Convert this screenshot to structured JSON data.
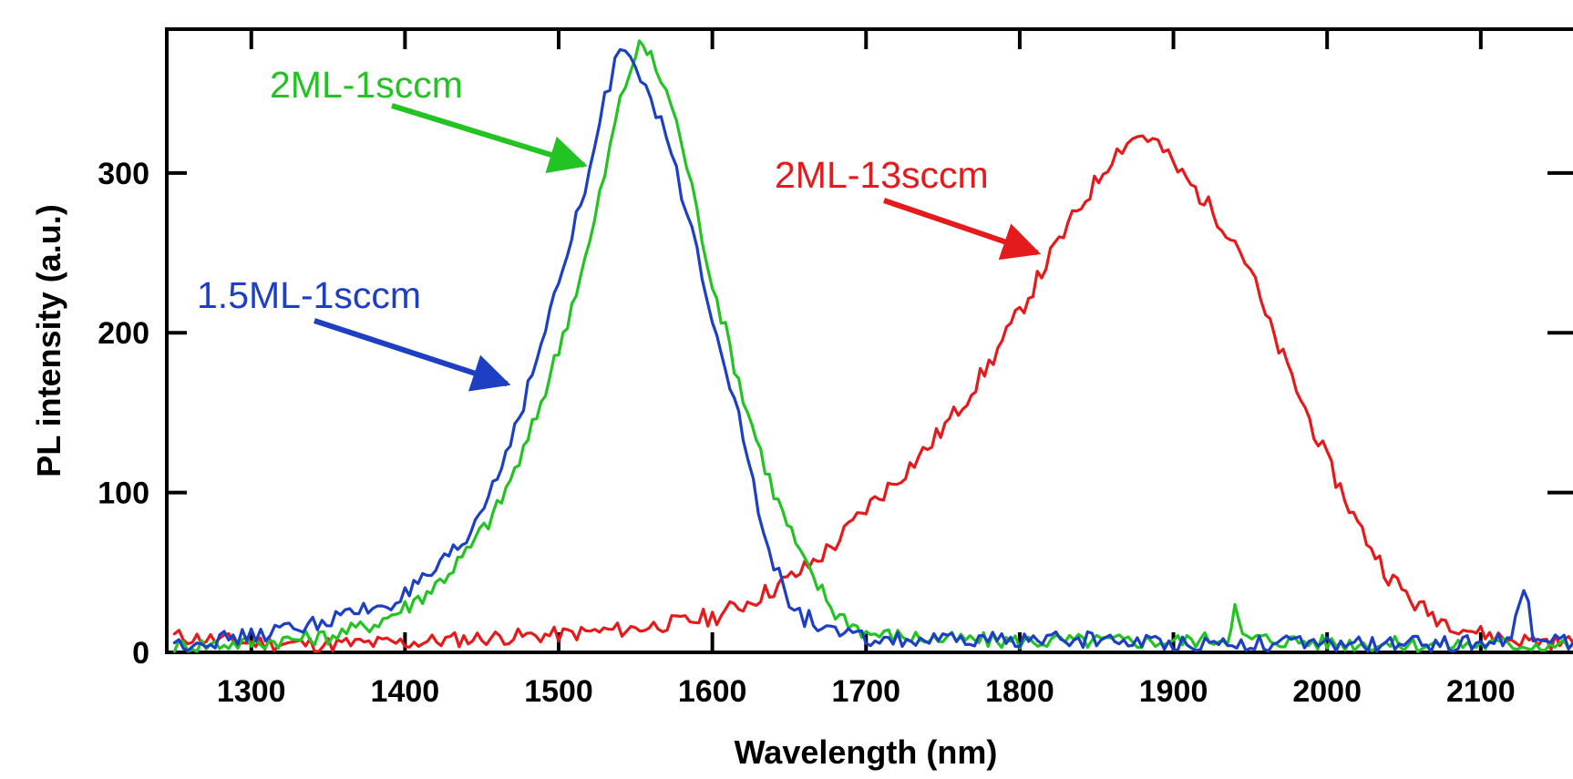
{
  "chart_data": {
    "type": "line",
    "title": "",
    "xlabel": "Wavelength (nm)",
    "ylabel": "PL intensity (a.u.)",
    "xlim": [
      1245,
      2160
    ],
    "ylim": [
      0,
      390
    ],
    "xticks": [
      1300,
      1400,
      1500,
      1600,
      1700,
      1800,
      1900,
      2000,
      2100
    ],
    "xtick_labels": [
      "1300",
      "1400",
      "1500",
      "1600",
      "1700",
      "1800",
      "1900",
      "2000",
      "2100"
    ],
    "yticks": [
      0,
      100,
      200,
      300
    ],
    "ytick_labels": [
      "0",
      "100",
      "200",
      "300"
    ],
    "grid": false,
    "legend": "none",
    "series": [
      {
        "name": "2ML-13sccm",
        "color": "#e41a1c",
        "points": [
          [
            1250,
            10
          ],
          [
            1300,
            6
          ],
          [
            1350,
            5
          ],
          [
            1400,
            6
          ],
          [
            1450,
            9
          ],
          [
            1500,
            11
          ],
          [
            1550,
            15
          ],
          [
            1600,
            22
          ],
          [
            1620,
            30
          ],
          [
            1640,
            40
          ],
          [
            1660,
            52
          ],
          [
            1680,
            68
          ],
          [
            1700,
            90
          ],
          [
            1720,
            108
          ],
          [
            1740,
            128
          ],
          [
            1760,
            152
          ],
          [
            1780,
            180
          ],
          [
            1800,
            213
          ],
          [
            1820,
            248
          ],
          [
            1840,
            280
          ],
          [
            1860,
            310
          ],
          [
            1870,
            320
          ],
          [
            1880,
            324
          ],
          [
            1890,
            318
          ],
          [
            1900,
            305
          ],
          [
            1920,
            283
          ],
          [
            1940,
            258
          ],
          [
            1950,
            240
          ],
          [
            1960,
            210
          ],
          [
            1980,
            165
          ],
          [
            2000,
            120
          ],
          [
            2020,
            80
          ],
          [
            2040,
            48
          ],
          [
            2060,
            28
          ],
          [
            2080,
            18
          ],
          [
            2100,
            12
          ],
          [
            2120,
            8
          ],
          [
            2140,
            7
          ],
          [
            2160,
            6
          ]
        ]
      },
      {
        "name": "2ML-1sccm",
        "color": "#22c322",
        "points": [
          [
            1250,
            4
          ],
          [
            1300,
            6
          ],
          [
            1350,
            10
          ],
          [
            1380,
            18
          ],
          [
            1400,
            28
          ],
          [
            1420,
            42
          ],
          [
            1440,
            62
          ],
          [
            1460,
            90
          ],
          [
            1480,
            132
          ],
          [
            1500,
            190
          ],
          [
            1520,
            255
          ],
          [
            1530,
            300
          ],
          [
            1540,
            345
          ],
          [
            1550,
            375
          ],
          [
            1555,
            380
          ],
          [
            1560,
            372
          ],
          [
            1570,
            352
          ],
          [
            1580,
            320
          ],
          [
            1590,
            275
          ],
          [
            1600,
            232
          ],
          [
            1620,
            160
          ],
          [
            1640,
            100
          ],
          [
            1660,
            55
          ],
          [
            1680,
            25
          ],
          [
            1700,
            12
          ],
          [
            1750,
            8
          ],
          [
            1800,
            7
          ],
          [
            1850,
            7
          ],
          [
            1900,
            7
          ],
          [
            1935,
            9
          ],
          [
            1940,
            28
          ],
          [
            1945,
            9
          ],
          [
            2000,
            6
          ],
          [
            2050,
            5
          ],
          [
            2100,
            5
          ],
          [
            2160,
            5
          ]
        ]
      },
      {
        "name": "1.5ML-1sccm",
        "color": "#1c3fc4",
        "points": [
          [
            1250,
            5
          ],
          [
            1300,
            10
          ],
          [
            1340,
            18
          ],
          [
            1370,
            25
          ],
          [
            1400,
            35
          ],
          [
            1420,
            50
          ],
          [
            1440,
            70
          ],
          [
            1460,
            110
          ],
          [
            1480,
            165
          ],
          [
            1500,
            230
          ],
          [
            1520,
            300
          ],
          [
            1530,
            345
          ],
          [
            1540,
            380
          ],
          [
            1550,
            372
          ],
          [
            1560,
            345
          ],
          [
            1570,
            322
          ],
          [
            1580,
            288
          ],
          [
            1590,
            250
          ],
          [
            1600,
            212
          ],
          [
            1620,
            138
          ],
          [
            1630,
            85
          ],
          [
            1640,
            55
          ],
          [
            1650,
            32
          ],
          [
            1660,
            22
          ],
          [
            1680,
            12
          ],
          [
            1700,
            8
          ],
          [
            1750,
            7
          ],
          [
            1800,
            8
          ],
          [
            1850,
            8
          ],
          [
            1900,
            6
          ],
          [
            1950,
            6
          ],
          [
            2000,
            5
          ],
          [
            2050,
            5
          ],
          [
            2100,
            6
          ],
          [
            2120,
            10
          ],
          [
            2128,
            40
          ],
          [
            2134,
            12
          ],
          [
            2160,
            6
          ]
        ]
      }
    ],
    "annotations": [
      {
        "text": "2ML-1sccm",
        "color": "#22c322",
        "target": [
          1520,
          305
        ]
      },
      {
        "text": "2ML-13sccm",
        "color": "#e41a1c",
        "target": [
          1815,
          250
        ]
      },
      {
        "text": "1.5ML-1sccm",
        "color": "#1c3fc4",
        "target": [
          1470,
          168
        ]
      }
    ]
  }
}
